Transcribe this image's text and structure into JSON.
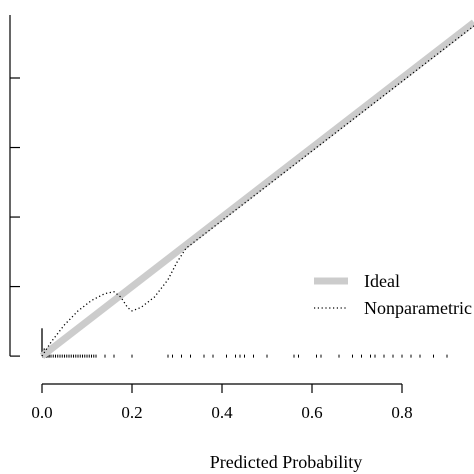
{
  "chart_data": {
    "type": "line",
    "xlabel": "Predicted Probability",
    "ylabel": "",
    "xlim": [
      -0.04,
      0.96
    ],
    "ylim": [
      -0.04,
      1.01
    ],
    "x_ticks": [
      0.0,
      0.2,
      0.4,
      0.6,
      0.8
    ],
    "x_tick_labels": [
      "0.0",
      "0.2",
      "0.4",
      "0.6",
      "0.8"
    ],
    "y_ticks": [
      0.0,
      0.2,
      0.4,
      0.6,
      0.8,
      1.0
    ],
    "grid": false,
    "legend_position": "right-center",
    "series": [
      {
        "name": "Ideal",
        "style": "thick-solid",
        "color": "#cccccc",
        "x": [
          0.0,
          0.96
        ],
        "y": [
          0.0,
          0.96
        ]
      },
      {
        "name": "Nonparametric",
        "style": "dotted",
        "color": "#000000",
        "x": [
          0.0,
          0.02,
          0.05,
          0.08,
          0.11,
          0.14,
          0.16,
          0.175,
          0.19,
          0.2,
          0.22,
          0.25,
          0.28,
          0.3,
          0.32,
          0.35,
          0.4,
          0.5,
          0.6,
          0.7,
          0.8,
          0.9,
          0.96
        ],
        "y": [
          0.0,
          0.04,
          0.09,
          0.13,
          0.16,
          0.18,
          0.185,
          0.17,
          0.14,
          0.13,
          0.14,
          0.17,
          0.22,
          0.27,
          0.31,
          0.34,
          0.39,
          0.49,
          0.59,
          0.69,
          0.79,
          0.89,
          0.95
        ]
      }
    ],
    "rug_x": [
      0.002,
      0.004,
      0.006,
      0.008,
      0.01,
      0.013,
      0.016,
      0.02,
      0.025,
      0.03,
      0.035,
      0.04,
      0.045,
      0.05,
      0.055,
      0.06,
      0.065,
      0.07,
      0.075,
      0.08,
      0.085,
      0.09,
      0.095,
      0.1,
      0.105,
      0.11,
      0.115,
      0.12,
      0.14,
      0.16,
      0.2,
      0.28,
      0.29,
      0.31,
      0.33,
      0.36,
      0.38,
      0.41,
      0.43,
      0.44,
      0.45,
      0.47,
      0.5,
      0.56,
      0.57,
      0.61,
      0.62,
      0.66,
      0.69,
      0.71,
      0.73,
      0.74,
      0.76,
      0.78,
      0.8,
      0.82,
      0.84,
      0.87,
      0.9
    ],
    "spikes": [
      {
        "x": 0.0,
        "height": 0.08
      },
      {
        "x": 0.005,
        "height": 0.022
      },
      {
        "x": 0.012,
        "height": 0.015
      }
    ]
  }
}
